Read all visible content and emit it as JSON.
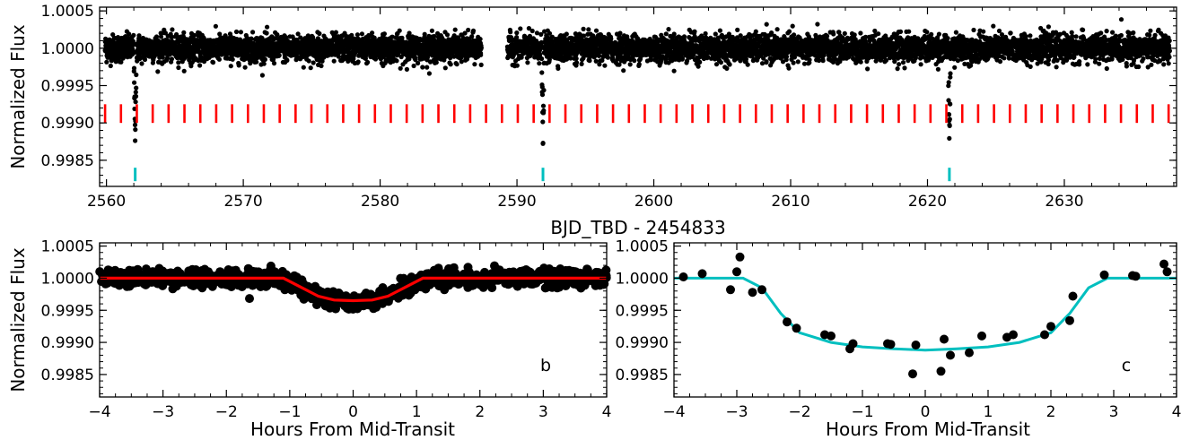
{
  "figure": {
    "colors": {
      "points": "#000000",
      "transit_markers": "#ff0000",
      "detected_markers": "#00bfbf",
      "model_b": "#ff0000",
      "model_c": "#00bfbf"
    }
  },
  "chart_data": [
    {
      "id": "top-lightcurve",
      "type": "scatter",
      "title": "",
      "xlabel": "BJD_TBD - 2454833",
      "ylabel": "Normalized Flux",
      "xlim": [
        2559.5,
        2638.2
      ],
      "ylim": [
        0.99815,
        1.00055
      ],
      "xticks": [
        "2560",
        "2570",
        "2580",
        "2590",
        "2600",
        "2610",
        "2620",
        "2630"
      ],
      "yticks": [
        "1.0005",
        "1.0000",
        "0.9995",
        "0.9990",
        "0.9985"
      ],
      "observation_windows": [
        [
          2559.9,
          2587.4
        ],
        [
          2589.3,
          2637.7
        ]
      ],
      "baseline_flux": 1.0,
      "scatter_sigma": 0.00012,
      "transit_depth": 0.0014,
      "red_marker_period_days": 1.16,
      "red_marker_first_epoch": 2559.9,
      "red_marker_ylim": [
        0.999,
        0.99925
      ],
      "cyan_marker_epochs": [
        2562.1,
        2591.9,
        2621.6
      ],
      "cyan_marker_ylim": [
        0.99822,
        0.9984
      ]
    },
    {
      "id": "panel-b",
      "type": "scatter",
      "panel_label": "b",
      "xlabel": "Hours From Mid-Transit",
      "ylabel": "Normalized Flux",
      "xlim": [
        -4,
        4
      ],
      "ylim": [
        0.99815,
        1.00055
      ],
      "xticks": [
        "−4",
        "−3",
        "−2",
        "−1",
        "0",
        "1",
        "2",
        "3",
        "4"
      ],
      "yticks": [
        "1.0005",
        "1.0000",
        "0.9995",
        "0.9990",
        "0.9985"
      ],
      "model": {
        "x": [
          -4,
          -1.1,
          -0.55,
          -0.3,
          0,
          0.3,
          0.55,
          1.1,
          4
        ],
        "y": [
          1.0,
          1.0,
          0.99972,
          0.99966,
          0.99965,
          0.99966,
          0.99972,
          1.0,
          1.0
        ]
      },
      "scatter_sigma": 0.00012
    },
    {
      "id": "panel-c",
      "type": "scatter",
      "panel_label": "c",
      "xlabel": "Hours From Mid-Transit",
      "ylabel": "",
      "xlim": [
        -4,
        4
      ],
      "ylim": [
        0.99815,
        1.00055
      ],
      "xticks": [
        "−4",
        "−3",
        "−2",
        "−1",
        "0",
        "1",
        "2",
        "3",
        "4"
      ],
      "yticks": [
        "1.0005",
        "1.0000",
        "0.9995",
        "0.9990",
        "0.9985"
      ],
      "model": {
        "x": [
          -4,
          -2.9,
          -2.6,
          -2.3,
          -2.0,
          -1.5,
          -1.0,
          -0.5,
          0,
          0.5,
          1.0,
          1.5,
          2.0,
          2.3,
          2.6,
          2.9,
          4
        ],
        "y": [
          1.0,
          1.0,
          0.99985,
          0.99945,
          0.99915,
          0.999,
          0.99893,
          0.9989,
          0.99888,
          0.9989,
          0.99893,
          0.999,
          0.99915,
          0.99945,
          0.99985,
          1.0,
          1.0
        ]
      },
      "points": {
        "x": [
          -3.85,
          -3.55,
          -3.1,
          -3.0,
          -2.95,
          -2.75,
          -2.6,
          -2.2,
          -2.05,
          -1.6,
          -1.5,
          -1.2,
          -1.15,
          -0.6,
          -0.55,
          -0.2,
          -0.15,
          0.25,
          0.3,
          0.4,
          0.7,
          0.9,
          1.3,
          1.4,
          1.9,
          2.0,
          2.3,
          2.35,
          2.85,
          3.3,
          3.35,
          3.8,
          3.85
        ],
        "y": [
          1.00002,
          1.00007,
          0.99982,
          1.0001,
          1.00033,
          0.99978,
          0.99982,
          0.99932,
          0.99922,
          0.99912,
          0.9991,
          0.9989,
          0.99898,
          0.99898,
          0.99897,
          0.99851,
          0.99896,
          0.99855,
          0.99905,
          0.9988,
          0.99884,
          0.9991,
          0.99908,
          0.99912,
          0.99912,
          0.99925,
          0.99934,
          0.99972,
          1.00005,
          1.00004,
          1.00003,
          1.00022,
          1.0001
        ]
      }
    }
  ]
}
